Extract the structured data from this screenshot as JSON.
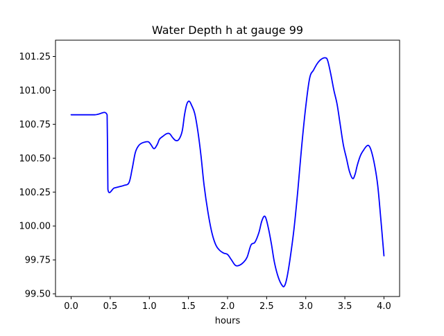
{
  "chart_data": {
    "type": "line",
    "title": "Water Depth h at gauge 99",
    "xlabel": "hours",
    "ylabel": "",
    "xlim": [
      -0.2,
      4.2
    ],
    "ylim": [
      99.48,
      101.37
    ],
    "grid": false,
    "legend": "none",
    "x_ticks": [
      0.0,
      0.5,
      1.0,
      1.5,
      2.0,
      2.5,
      3.0,
      3.5,
      4.0
    ],
    "x_tick_labels": [
      "0.0",
      "0.5",
      "1.0",
      "1.5",
      "2.0",
      "2.5",
      "3.0",
      "3.5",
      "4.0"
    ],
    "y_ticks": [
      99.5,
      99.75,
      100.0,
      100.25,
      100.5,
      100.75,
      101.0,
      101.25
    ],
    "y_tick_labels": [
      "99.50",
      "99.75",
      "100.00",
      "100.25",
      "100.50",
      "100.75",
      "101.00",
      "101.25"
    ],
    "series": [
      {
        "color": "#0000ff",
        "x": [
          0.0,
          0.3,
          0.46,
          0.465,
          0.47,
          0.55,
          0.62,
          0.68,
          0.74,
          0.78,
          0.82,
          0.86,
          0.9,
          0.95,
          0.99,
          1.02,
          1.06,
          1.1,
          1.13,
          1.17,
          1.22,
          1.26,
          1.3,
          1.34,
          1.38,
          1.42,
          1.45,
          1.48,
          1.51,
          1.54,
          1.58,
          1.62,
          1.66,
          1.7,
          1.75,
          1.8,
          1.85,
          1.9,
          1.95,
          2.0,
          2.05,
          2.1,
          2.15,
          2.2,
          2.25,
          2.3,
          2.35,
          2.4,
          2.44,
          2.48,
          2.52,
          2.56,
          2.6,
          2.65,
          2.7,
          2.73,
          2.76,
          2.8,
          2.85,
          2.9,
          2.95,
          3.0,
          3.05,
          3.1,
          3.15,
          3.2,
          3.25,
          3.28,
          3.32,
          3.36,
          3.4,
          3.44,
          3.48,
          3.52,
          3.56,
          3.6,
          3.63,
          3.66,
          3.7,
          3.74,
          3.78,
          3.81,
          3.84,
          3.88,
          3.92,
          3.96,
          4.0
        ],
        "y": [
          100.82,
          100.82,
          100.82,
          100.6,
          100.27,
          100.28,
          100.29,
          100.3,
          100.32,
          100.42,
          100.54,
          100.59,
          100.61,
          100.62,
          100.62,
          100.6,
          100.57,
          100.6,
          100.64,
          100.66,
          100.68,
          100.68,
          100.65,
          100.63,
          100.64,
          100.7,
          100.82,
          100.9,
          100.92,
          100.89,
          100.83,
          100.7,
          100.52,
          100.3,
          100.1,
          99.95,
          99.86,
          99.82,
          99.8,
          99.79,
          99.75,
          99.71,
          99.71,
          99.73,
          99.77,
          99.86,
          99.88,
          99.95,
          100.04,
          100.07,
          99.99,
          99.87,
          99.73,
          99.62,
          99.56,
          99.56,
          99.62,
          99.76,
          99.98,
          100.27,
          100.6,
          100.88,
          101.09,
          101.15,
          101.2,
          101.23,
          101.24,
          101.22,
          101.12,
          101.0,
          100.9,
          100.75,
          100.6,
          100.5,
          100.4,
          100.35,
          100.38,
          100.45,
          100.52,
          100.56,
          100.59,
          100.59,
          100.55,
          100.45,
          100.3,
          100.05,
          99.78
        ]
      }
    ]
  }
}
